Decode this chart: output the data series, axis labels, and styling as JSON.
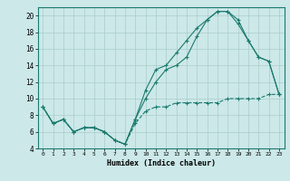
{
  "xlabel": "Humidex (Indice chaleur)",
  "background_color": "#cce8e8",
  "grid_color": "#aacccc",
  "line_color": "#1a7a6e",
  "xlim": [
    -0.5,
    23.5
  ],
  "ylim": [
    4,
    21
  ],
  "yticks": [
    4,
    6,
    8,
    10,
    12,
    14,
    16,
    18,
    20
  ],
  "xticks": [
    0,
    1,
    2,
    3,
    4,
    5,
    6,
    7,
    8,
    9,
    10,
    11,
    12,
    13,
    14,
    15,
    16,
    17,
    18,
    19,
    20,
    21,
    22,
    23
  ],
  "line1_x": [
    0,
    1,
    2,
    3,
    4,
    5,
    6,
    7,
    8,
    9,
    10,
    11,
    12,
    13,
    14,
    15,
    16,
    17,
    18,
    19,
    20,
    21,
    22,
    23
  ],
  "line1_y": [
    9.0,
    7.0,
    7.5,
    6.0,
    6.5,
    6.5,
    6.0,
    5.0,
    4.5,
    7.5,
    11.0,
    13.5,
    14.0,
    15.5,
    17.0,
    18.5,
    19.5,
    20.5,
    20.5,
    19.0,
    17.0,
    15.0,
    14.5,
    10.5
  ],
  "line2_x": [
    0,
    1,
    2,
    3,
    4,
    5,
    6,
    7,
    8,
    9,
    10,
    11,
    12,
    13,
    14,
    15,
    16,
    17,
    18,
    19,
    20,
    21,
    22,
    23
  ],
  "line2_y": [
    9.0,
    7.0,
    7.5,
    6.0,
    6.5,
    6.5,
    6.0,
    5.0,
    4.5,
    7.5,
    10.0,
    12.0,
    13.5,
    14.0,
    15.0,
    17.5,
    19.5,
    20.5,
    20.5,
    19.5,
    17.0,
    15.0,
    14.5,
    10.5
  ],
  "line3_x": [
    0,
    1,
    2,
    3,
    4,
    5,
    6,
    7,
    8,
    9,
    10,
    11,
    12,
    13,
    14,
    15,
    16,
    17,
    18,
    19,
    20,
    21,
    22,
    23
  ],
  "line3_y": [
    9.0,
    7.0,
    7.5,
    6.0,
    6.5,
    6.5,
    6.0,
    5.0,
    4.5,
    7.0,
    8.5,
    9.0,
    9.0,
    9.5,
    9.5,
    9.5,
    9.5,
    9.5,
    10.0,
    10.0,
    10.0,
    10.0,
    10.5,
    10.5
  ]
}
